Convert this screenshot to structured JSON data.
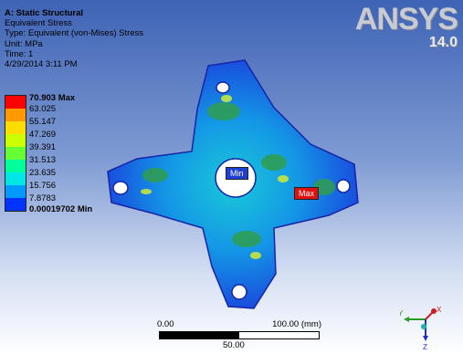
{
  "info": {
    "title": "A: Static Structural",
    "line1": "Equivalent Stress",
    "line2": "Type: Equivalent (von-Mises) Stress",
    "line3": "Unit: MPa",
    "line4": "Time: 1",
    "line5": "4/29/2014 3:11 PM"
  },
  "logo": {
    "brand": "ANSYS",
    "version": "14.0"
  },
  "legend": {
    "max_label": "70.903 Max",
    "levels": [
      "63.025",
      "55.147",
      "47.269",
      "39.391",
      "31.513",
      "23.635",
      "15.756",
      "7.8783"
    ],
    "min_label": "0.00019702 Min",
    "colors": [
      "#ff0000",
      "#ff9900",
      "#ffdd00",
      "#ccff00",
      "#66ff33",
      "#00ff99",
      "#00e5e5",
      "#0099ff",
      "#0033ff"
    ]
  },
  "probes": {
    "min": "Min",
    "max": "Max"
  },
  "scale": {
    "left": "0.00",
    "right": "100.00 (mm)",
    "mid": "50.00"
  },
  "axes": {
    "x": "X",
    "y": "Y",
    "z": "Z"
  }
}
